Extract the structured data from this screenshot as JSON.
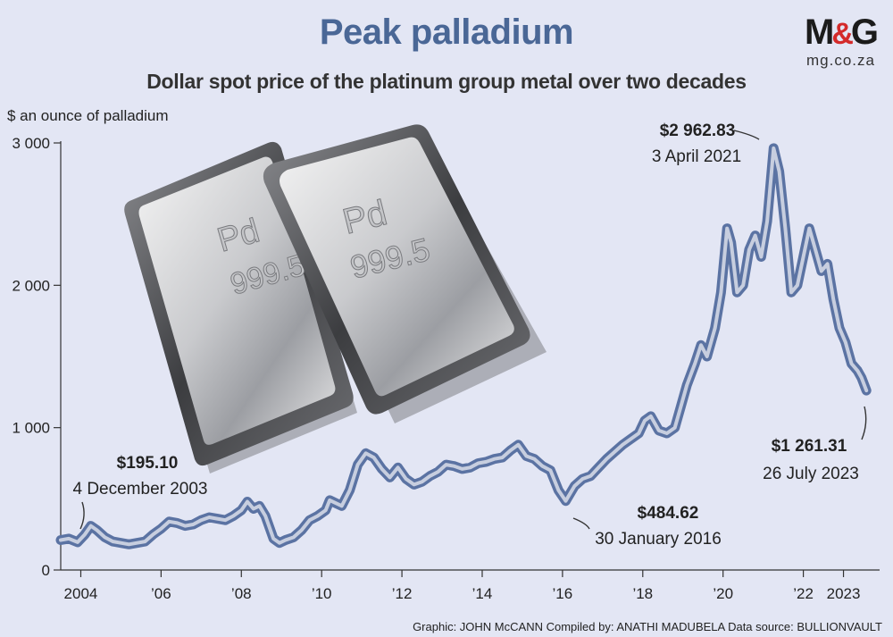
{
  "header": {
    "title": "Peak palladium",
    "subtitle": "Dollar spot price of the platinum group metal over two decades",
    "logo_text_m": "M",
    "logo_text_amp": "&",
    "logo_text_g": "G",
    "logo_url": "mg.co.za"
  },
  "bars": {
    "symbol": "Pd",
    "purity": "999.5"
  },
  "footer": {
    "credit": "Graphic: JOHN McCANN  Compiled by: ANATHI MADUBELA  Data source: BULLIONVAULT"
  },
  "colors": {
    "background": "#e3e6f4",
    "title": "#4a6796",
    "line_outer": "#5b73a3",
    "line_inner": "#c7cedf"
  },
  "chart_data": {
    "type": "line",
    "title": "Peak palladium",
    "subtitle": "Dollar spot price of the platinum group metal over two decades",
    "ylabel": "$ an ounce of palladium",
    "xlabel": "",
    "ylim": [
      0,
      3000
    ],
    "xlim": [
      2003.5,
      2023.9
    ],
    "yticks": [
      {
        "value": 0,
        "label": "0"
      },
      {
        "value": 1000,
        "label": "1 000"
      },
      {
        "value": 2000,
        "label": "2 000"
      },
      {
        "value": 3000,
        "label": "3 000"
      }
    ],
    "xticks": [
      {
        "value": 2004,
        "label": "2004"
      },
      {
        "value": 2006,
        "label": "’06"
      },
      {
        "value": 2008,
        "label": "’08"
      },
      {
        "value": 2010,
        "label": "’10"
      },
      {
        "value": 2012,
        "label": "’12"
      },
      {
        "value": 2014,
        "label": "’14"
      },
      {
        "value": 2016,
        "label": "’16"
      },
      {
        "value": 2018,
        "label": "’18"
      },
      {
        "value": 2020,
        "label": "’20"
      },
      {
        "value": 2022,
        "label": "’22"
      },
      {
        "value": 2023,
        "label": "2023"
      }
    ],
    "series": [
      {
        "name": "Palladium spot price ($/oz)",
        "x": [
          2003.5,
          2003.7,
          2003.92,
          2004.1,
          2004.25,
          2004.4,
          2004.6,
          2004.8,
          2005.0,
          2005.2,
          2005.4,
          2005.6,
          2005.8,
          2006.0,
          2006.2,
          2006.4,
          2006.6,
          2006.8,
          2007.0,
          2007.2,
          2007.4,
          2007.6,
          2007.8,
          2008.0,
          2008.15,
          2008.3,
          2008.45,
          2008.6,
          2008.8,
          2008.95,
          2009.1,
          2009.3,
          2009.5,
          2009.7,
          2009.9,
          2010.1,
          2010.2,
          2010.35,
          2010.5,
          2010.7,
          2010.9,
          2011.1,
          2011.3,
          2011.5,
          2011.7,
          2011.9,
          2012.1,
          2012.3,
          2012.5,
          2012.7,
          2012.9,
          2013.1,
          2013.3,
          2013.5,
          2013.7,
          2013.9,
          2014.1,
          2014.3,
          2014.5,
          2014.7,
          2014.9,
          2015.1,
          2015.3,
          2015.5,
          2015.7,
          2015.9,
          2016.08,
          2016.3,
          2016.5,
          2016.7,
          2016.9,
          2017.1,
          2017.3,
          2017.5,
          2017.7,
          2017.9,
          2018.05,
          2018.2,
          2018.4,
          2018.6,
          2018.8,
          2018.95,
          2019.1,
          2019.3,
          2019.45,
          2019.6,
          2019.8,
          2019.95,
          2020.1,
          2020.2,
          2020.35,
          2020.5,
          2020.65,
          2020.8,
          2020.95,
          2021.1,
          2021.26,
          2021.4,
          2021.55,
          2021.7,
          2021.85,
          2022.0,
          2022.15,
          2022.3,
          2022.45,
          2022.6,
          2022.75,
          2022.9,
          2023.05,
          2023.2,
          2023.35,
          2023.45,
          2023.57
        ],
        "y": [
          210,
          220,
          195,
          250,
          310,
          280,
          230,
          200,
          190,
          180,
          190,
          200,
          250,
          290,
          340,
          330,
          310,
          320,
          350,
          370,
          360,
          350,
          380,
          420,
          480,
          430,
          450,
          380,
          220,
          190,
          210,
          230,
          280,
          350,
          380,
          420,
          490,
          470,
          450,
          560,
          740,
          820,
          790,
          710,
          650,
          720,
          640,
          600,
          620,
          660,
          690,
          740,
          730,
          710,
          720,
          750,
          760,
          780,
          790,
          840,
          880,
          800,
          780,
          730,
          700,
          560,
          485,
          590,
          640,
          660,
          720,
          780,
          830,
          880,
          920,
          960,
          1050,
          1080,
          980,
          960,
          1000,
          1150,
          1300,
          1450,
          1580,
          1500,
          1700,
          1950,
          2400,
          2300,
          1950,
          2000,
          2250,
          2350,
          2200,
          2450,
          2963,
          2800,
          2400,
          1950,
          2000,
          2200,
          2400,
          2250,
          2100,
          2150,
          1900,
          1700,
          1600,
          1450,
          1400,
          1350,
          1261
        ]
      }
    ],
    "annotations": [
      {
        "value": "$195.10",
        "date": "4 December 2003",
        "x": 2003.92,
        "y": 195.1
      },
      {
        "value": "$484.62",
        "date": "30 January 2016",
        "x": 2016.08,
        "y": 484.62
      },
      {
        "value": "$2 962.83",
        "date": "3 April 2021",
        "x": 2021.26,
        "y": 2962.83
      },
      {
        "value": "$1 261.31",
        "date": "26 July 2023",
        "x": 2023.57,
        "y": 1261.31
      }
    ]
  }
}
